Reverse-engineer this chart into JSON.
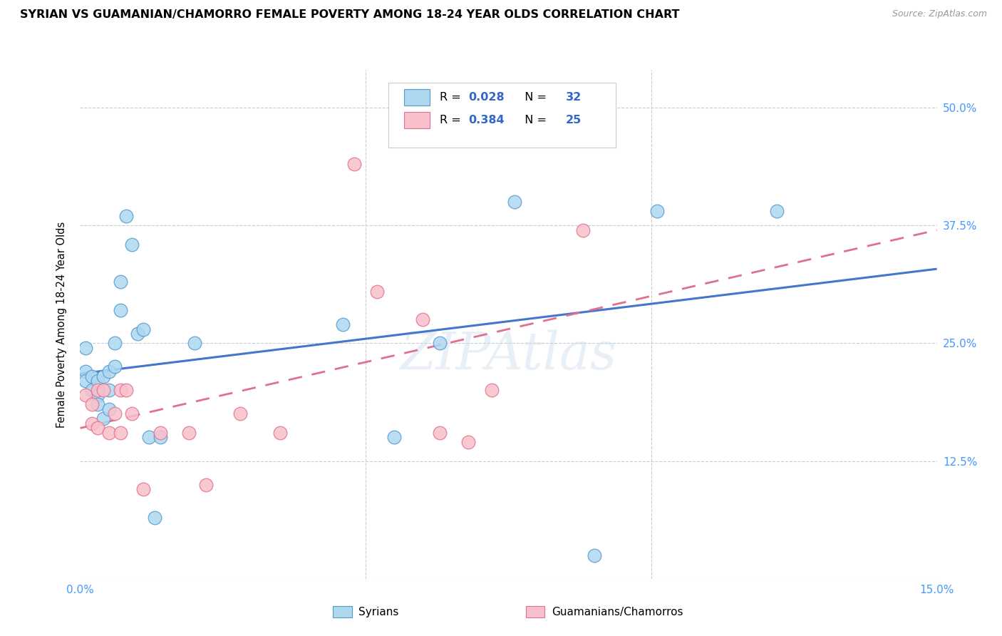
{
  "title": "SYRIAN VS GUAMANIAN/CHAMORRO FEMALE POVERTY AMONG 18-24 YEAR OLDS CORRELATION CHART",
  "source": "Source: ZipAtlas.com",
  "ylabel": "Female Poverty Among 18-24 Year Olds",
  "xlim": [
    0.0,
    0.15
  ],
  "ylim": [
    0.0,
    0.54
  ],
  "yticks": [
    0.0,
    0.125,
    0.25,
    0.375,
    0.5
  ],
  "ytick_labels": [
    "",
    "12.5%",
    "25.0%",
    "37.5%",
    "50.0%"
  ],
  "xticks": [
    0.0,
    0.05,
    0.1,
    0.15
  ],
  "xtick_labels": [
    "0.0%",
    "",
    "",
    "15.0%"
  ],
  "blue_fill": "#ADD8F0",
  "blue_edge": "#5599CC",
  "pink_fill": "#F9C0CB",
  "pink_edge": "#E07090",
  "blue_line": "#4477CC",
  "pink_line": "#E07090",
  "tick_color": "#4499FF",
  "legend_label1": "Syrians",
  "legend_label2": "Guamanians/Chamorros",
  "syrians_x": [
    0.001,
    0.001,
    0.001,
    0.002,
    0.002,
    0.003,
    0.003,
    0.003,
    0.004,
    0.004,
    0.005,
    0.005,
    0.005,
    0.006,
    0.006,
    0.007,
    0.007,
    0.008,
    0.009,
    0.01,
    0.011,
    0.012,
    0.013,
    0.014,
    0.02,
    0.046,
    0.055,
    0.063,
    0.076,
    0.09,
    0.101,
    0.122
  ],
  "syrians_y": [
    0.245,
    0.22,
    0.21,
    0.215,
    0.2,
    0.21,
    0.195,
    0.185,
    0.215,
    0.17,
    0.22,
    0.2,
    0.18,
    0.25,
    0.225,
    0.315,
    0.285,
    0.385,
    0.355,
    0.26,
    0.265,
    0.15,
    0.065,
    0.15,
    0.25,
    0.27,
    0.15,
    0.25,
    0.4,
    0.025,
    0.39,
    0.39
  ],
  "guam_x": [
    0.001,
    0.002,
    0.002,
    0.003,
    0.003,
    0.004,
    0.005,
    0.006,
    0.007,
    0.007,
    0.008,
    0.009,
    0.011,
    0.014,
    0.019,
    0.022,
    0.028,
    0.035,
    0.048,
    0.052,
    0.06,
    0.063,
    0.068,
    0.072,
    0.088
  ],
  "guam_y": [
    0.195,
    0.185,
    0.165,
    0.2,
    0.16,
    0.2,
    0.155,
    0.175,
    0.2,
    0.155,
    0.2,
    0.175,
    0.095,
    0.155,
    0.155,
    0.1,
    0.175,
    0.155,
    0.44,
    0.305,
    0.275,
    0.155,
    0.145,
    0.2,
    0.37
  ]
}
